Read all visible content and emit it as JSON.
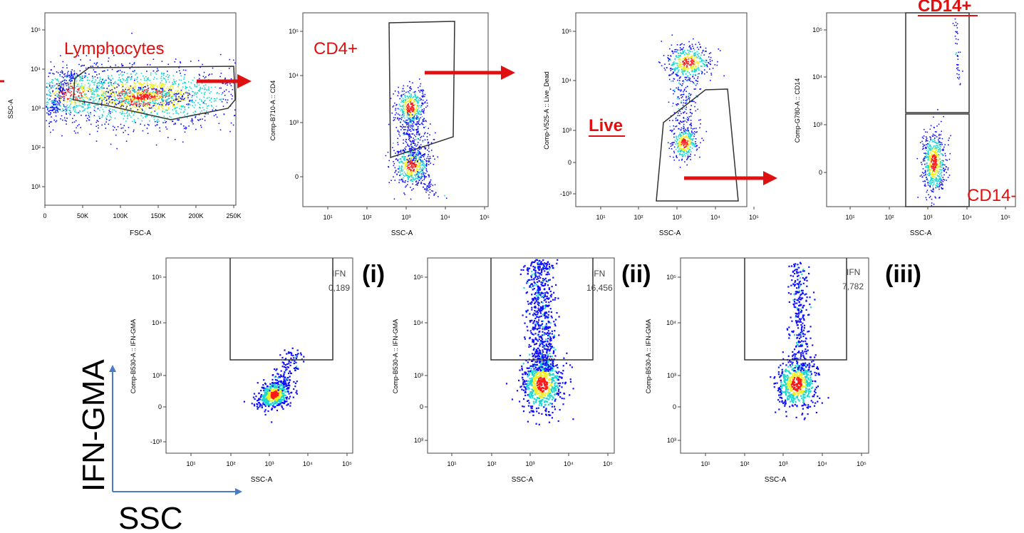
{
  "colors": {
    "gate_label": "#e01010",
    "arrow": "#e01010",
    "gate_line": "#333333",
    "axis_arrow": "#4a7cc4",
    "density_low": "#1010ff",
    "density_mid": "#18d8d0",
    "density_high_1": "#f0f020",
    "density_high_2": "#ff1818"
  },
  "chart_data": [
    {
      "id": "p1",
      "type": "scatter",
      "xlabel": "FSC-A",
      "ylabel": "SSC-A",
      "x_scale": "linear",
      "y_scale": "log",
      "x_ticks": [
        "0",
        "50K",
        "100K",
        "150K",
        "200K",
        "250K"
      ],
      "y_ticks": [
        "10¹",
        "10²",
        "10³",
        "10⁴",
        "10⁵"
      ],
      "gate": "Lymphocytes",
      "populations": [
        {
          "center_x": 150000,
          "center_y_log10": 3.25,
          "note": "main lymphocyte cluster"
        }
      ]
    },
    {
      "id": "p2",
      "type": "scatter",
      "xlabel": "SSC-A",
      "ylabel": "Comp-B710-A :: CD4",
      "x_scale": "log",
      "y_scale": "biexponential",
      "x_ticks": [
        "10¹",
        "10²",
        "10³",
        "10⁴",
        "10⁵"
      ],
      "y_ticks": [
        "0",
        "10³",
        "10⁴",
        "10⁵"
      ],
      "gate": "CD4+",
      "populations": [
        {
          "center_x_log10": 3.2,
          "label": "CD4 high"
        },
        {
          "center_x_log10": 3.2,
          "label": "CD4 low"
        }
      ]
    },
    {
      "id": "p3",
      "type": "scatter",
      "xlabel": "SSC-A",
      "ylabel": "Comp-V525-A :: Live_Dead",
      "x_scale": "log",
      "y_scale": "biexponential",
      "x_ticks": [
        "10¹",
        "10²",
        "10³",
        "10⁴",
        "10⁵"
      ],
      "y_ticks": [
        "-10³",
        "0",
        "10³",
        "10⁴",
        "10⁵"
      ],
      "gate": "Live",
      "populations": [
        {
          "center_x_log10": 3.7,
          "label": "dead"
        },
        {
          "center_x_log10": 3.2,
          "label": "live"
        }
      ]
    },
    {
      "id": "p4",
      "type": "scatter",
      "xlabel": "SSC-A",
      "ylabel": "Comp-G780-A :: CD14",
      "x_scale": "log",
      "y_scale": "biexponential",
      "x_ticks": [
        "10¹",
        "10²",
        "10³",
        "10⁴",
        "10⁵"
      ],
      "y_ticks": [
        "0",
        "10³",
        "10⁴",
        "10⁵"
      ],
      "gates": [
        "CD14+",
        "CD14-"
      ]
    },
    {
      "id": "p5",
      "type": "scatter",
      "xlabel": "SSC-A",
      "ylabel": "Comp-B530-A :: IFN-GMA",
      "x_scale": "log",
      "y_scale": "biexponential",
      "x_ticks": [
        "10¹",
        "10²",
        "10³",
        "10⁴",
        "10⁵"
      ],
      "y_ticks": [
        "-10³",
        "0",
        "10³",
        "10⁴",
        "10⁵"
      ],
      "gate_name": "IFN",
      "gate_value": "0,189",
      "panel": "(i)"
    },
    {
      "id": "p6",
      "type": "scatter",
      "xlabel": "SSC-A",
      "ylabel": "Comp-B530-A :: IFN-GMA",
      "x_scale": "log",
      "y_scale": "biexponential",
      "x_ticks": [
        "10¹",
        "10²",
        "10³",
        "10⁴",
        "10⁵"
      ],
      "y_ticks": [
        "10³",
        "0",
        "10³",
        "10⁴",
        "10⁵"
      ],
      "gate_name": "IFN",
      "gate_value": "16,456",
      "panel": "(ii)"
    },
    {
      "id": "p7",
      "type": "scatter",
      "xlabel": "SSC-A",
      "ylabel": "Comp-B530-A :: IFN-GMA",
      "x_scale": "log",
      "y_scale": "biexponential",
      "x_ticks": [
        "10¹",
        "10²",
        "10³",
        "10⁴",
        "10⁵"
      ],
      "y_ticks": [
        "10³",
        "0",
        "10³",
        "10⁴",
        "10⁵"
      ],
      "gate_name": "IFN",
      "gate_value": "7,782",
      "panel": "(iii)"
    }
  ],
  "labels": {
    "lymphocytes": "Lymphocytes",
    "cd4": "CD4+",
    "live": "Live",
    "cd14pos": "CD14+",
    "cd14neg": "CD14-",
    "panel_i": "(i)",
    "panel_ii": "(ii)",
    "panel_iii": "(iii)",
    "big_y": "IFN-GMA",
    "big_x": "SSC"
  }
}
